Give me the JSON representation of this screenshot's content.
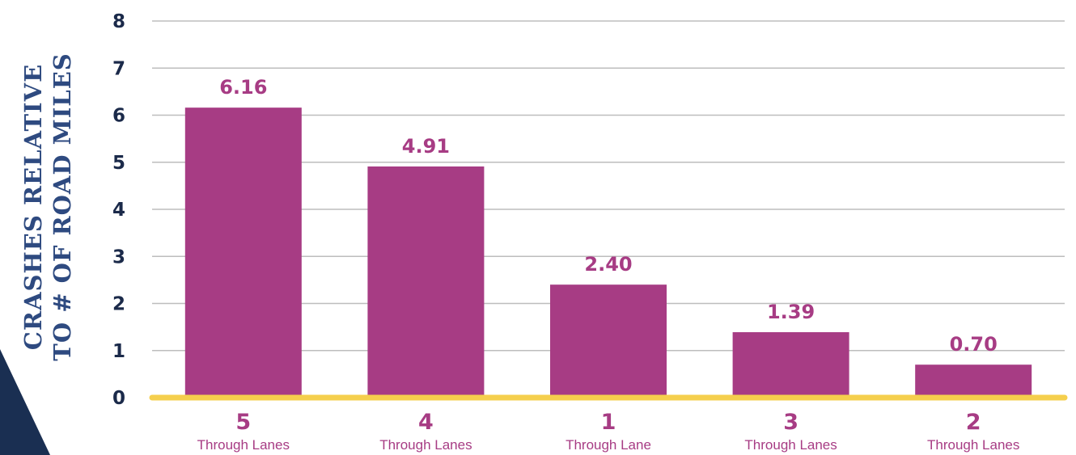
{
  "chart_data": {
    "type": "bar",
    "categories": [
      {
        "number": "5",
        "label": "Through Lanes"
      },
      {
        "number": "4",
        "label": "Through Lanes"
      },
      {
        "number": "1",
        "label": "Through Lane"
      },
      {
        "number": "3",
        "label": "Through Lanes"
      },
      {
        "number": "2",
        "label": "Through Lanes"
      }
    ],
    "values": [
      6.16,
      4.91,
      2.4,
      1.39,
      0.7
    ],
    "value_labels": [
      "6.16",
      "4.91",
      "2.40",
      "1.39",
      "0.70"
    ],
    "ylabel_lines": [
      "CRASHES RELATIVE",
      "TO # OF ROAD MILES"
    ],
    "yticks": [
      "0",
      "1",
      "2",
      "3",
      "4",
      "5",
      "6",
      "7",
      "8"
    ],
    "ylim": [
      0,
      8
    ],
    "grid": true,
    "colors": {
      "bar": "#a73c84",
      "baseline": "#f5cf4d",
      "grid": "#bdbdbd",
      "tick_text": "#1b2a4a",
      "ylabel": "#2e4a80",
      "corner": "#1a2f52"
    }
  }
}
